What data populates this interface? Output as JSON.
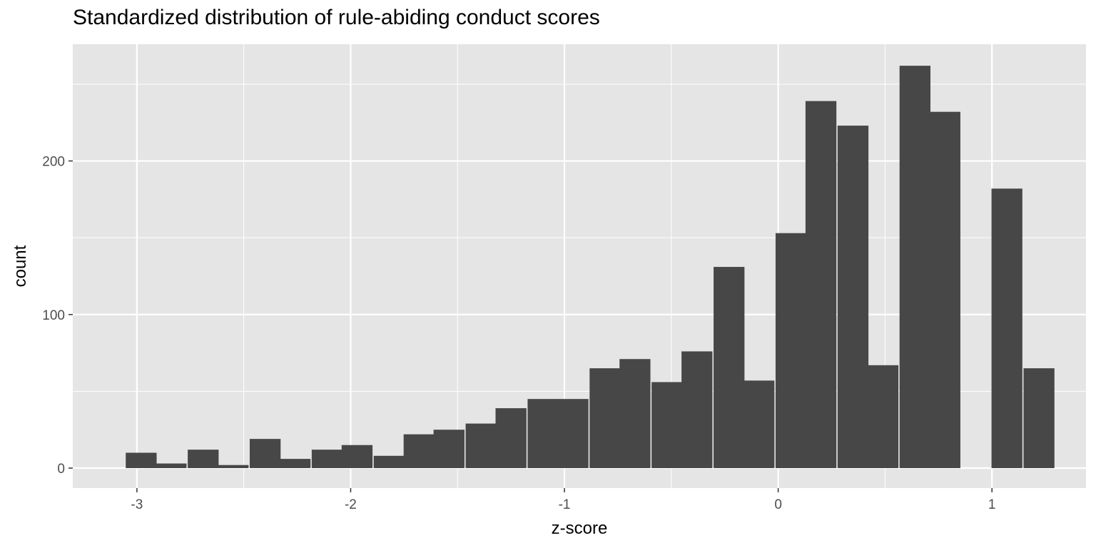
{
  "chart_data": {
    "type": "bar",
    "title": "Standardized distribution of rule-abiding conduct scores",
    "xlabel": "z-score",
    "ylabel": "count",
    "bin_width": 0.1445,
    "bins": [
      {
        "x": -2.98,
        "count": 10
      },
      {
        "x": -2.84,
        "count": 3
      },
      {
        "x": -2.69,
        "count": 12
      },
      {
        "x": -2.55,
        "count": 2
      },
      {
        "x": -2.4,
        "count": 19
      },
      {
        "x": -2.26,
        "count": 6
      },
      {
        "x": -2.11,
        "count": 12
      },
      {
        "x": -1.97,
        "count": 15
      },
      {
        "x": -1.82,
        "count": 8
      },
      {
        "x": -1.68,
        "count": 22
      },
      {
        "x": -1.54,
        "count": 25
      },
      {
        "x": -1.39,
        "count": 29
      },
      {
        "x": -1.25,
        "count": 39
      },
      {
        "x": -1.1,
        "count": 45
      },
      {
        "x": -0.96,
        "count": 45
      },
      {
        "x": -0.81,
        "count": 65
      },
      {
        "x": -0.67,
        "count": 71
      },
      {
        "x": -0.52,
        "count": 56
      },
      {
        "x": -0.38,
        "count": 76
      },
      {
        "x": -0.23,
        "count": 131
      },
      {
        "x": -0.09,
        "count": 57
      },
      {
        "x": 0.06,
        "count": 153
      },
      {
        "x": 0.2,
        "count": 239
      },
      {
        "x": 0.35,
        "count": 223
      },
      {
        "x": 0.49,
        "count": 67
      },
      {
        "x": 0.64,
        "count": 262
      },
      {
        "x": 0.78,
        "count": 232
      },
      {
        "x": 0.93,
        "count": 0
      },
      {
        "x": 1.07,
        "count": 182
      },
      {
        "x": 1.22,
        "count": 65
      }
    ],
    "xlim": [
      -3.3,
      1.44
    ],
    "ylim": [
      -13,
      276
    ],
    "x_ticks": [
      -3,
      -2,
      -1,
      0,
      1
    ],
    "x_tick_labels": [
      "-3",
      "-2",
      "-1",
      "0",
      "1"
    ],
    "y_ticks": [
      0,
      100,
      200
    ],
    "y_tick_labels": [
      "0",
      "100",
      "200"
    ],
    "grid": true,
    "colors": {
      "panel_bg": "#e5e5e5",
      "grid_major": "#ffffff",
      "bar_fill": "#474747",
      "tick_text": "#4d4d4d",
      "axis_title": "#000000"
    }
  }
}
